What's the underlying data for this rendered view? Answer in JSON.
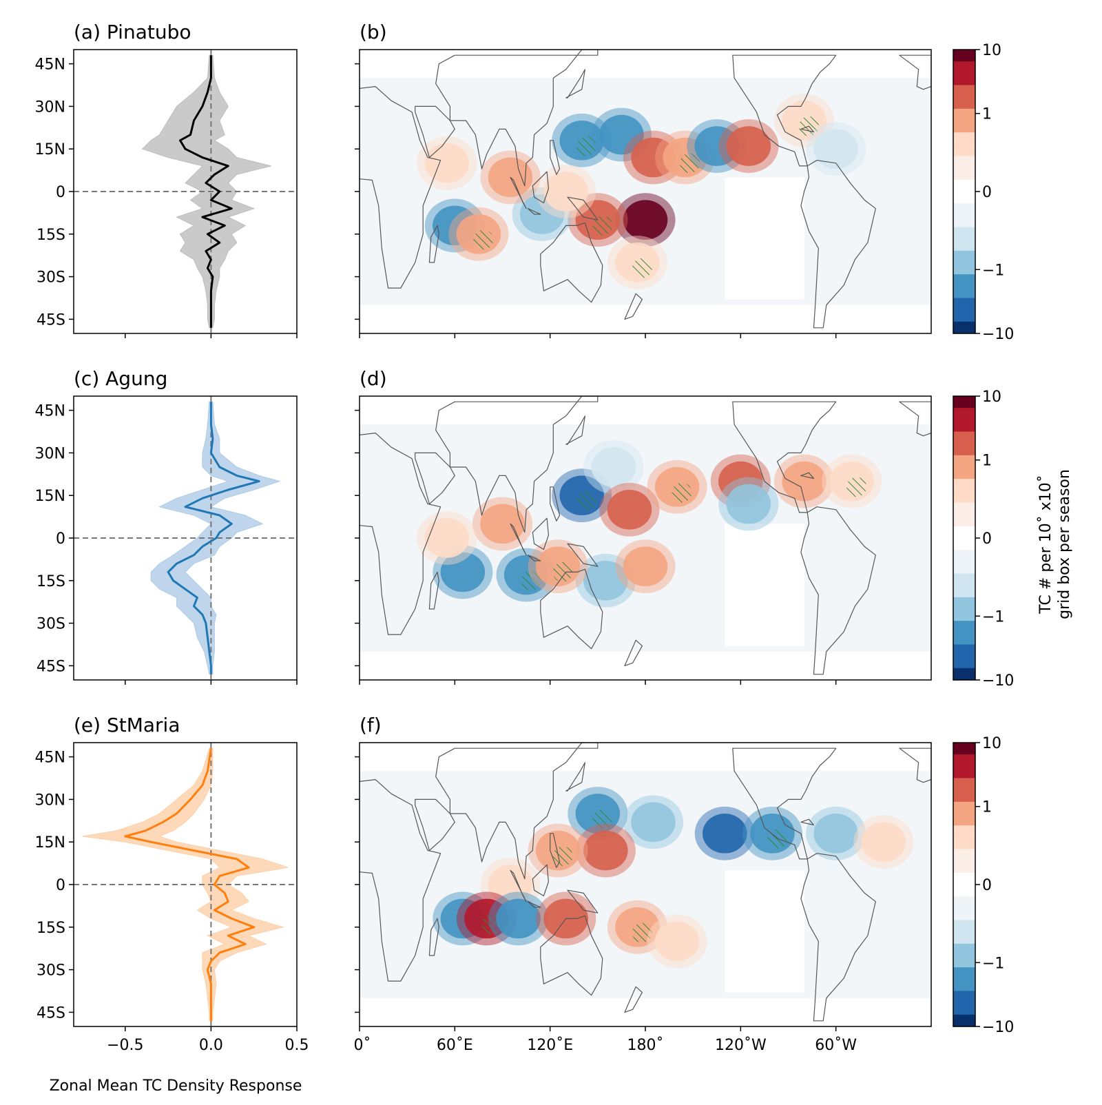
{
  "figure": {
    "x_axis_label": "Zonal Mean TC Density Response",
    "colorbar_label_line1": "TC # per 10˚ x10˚",
    "colorbar_label_line2": "grid box per season"
  },
  "colors": {
    "pinatubo": "#000000",
    "agung": "#1f77b4",
    "stmaria": "#ff7f0e",
    "pinatubo_band": "#bdbdbd",
    "agung_band": "#aecbe6",
    "stmaria_band": "#fdd0a8",
    "coast": "#555555",
    "hatch": "#2e8b2e"
  },
  "rows": [
    {
      "line_title": "(a) Pinatubo",
      "map_title": "(b)",
      "series_key": "pinatubo"
    },
    {
      "line_title": "(c) Agung",
      "map_title": "(d)",
      "series_key": "agung"
    },
    {
      "line_title": "(e) StMaria",
      "map_title": "(f)",
      "series_key": "stmaria"
    }
  ],
  "line_axis": {
    "y_ticks": [
      "45N",
      "30N",
      "15N",
      "0",
      "15S",
      "30S",
      "45S"
    ],
    "y_tick_values": [
      45,
      30,
      15,
      0,
      -15,
      -30,
      -45
    ],
    "ylim": [
      -50,
      50
    ],
    "x_ticks": [
      "−0.5",
      "0.0",
      "0.5"
    ],
    "x_tick_values": [
      -0.5,
      0.0,
      0.5
    ],
    "xlim": [
      -0.8,
      0.5
    ]
  },
  "map_axis": {
    "x_ticks": [
      "0˚",
      "60˚E",
      "120˚E",
      "180˚",
      "120˚W",
      "60˚W"
    ],
    "x_tick_values": [
      0,
      60,
      120,
      180,
      240,
      300
    ]
  },
  "colorbar": {
    "tick_labels": [
      "10",
      "1",
      "0",
      "−1",
      "−10"
    ]
  },
  "chart_data": [
    {
      "type": "line",
      "name": "pinatubo",
      "lat": [
        48,
        40,
        35,
        30,
        25,
        20,
        18,
        15,
        12,
        9,
        6,
        3,
        0,
        -3,
        -6,
        -9,
        -12,
        -15,
        -18,
        -21,
        -24,
        -27,
        -30,
        -35,
        -40,
        -45,
        -48
      ],
      "values": [
        0.0,
        0.0,
        -0.02,
        -0.05,
        -0.1,
        -0.12,
        -0.18,
        -0.15,
        -0.05,
        0.1,
        0.02,
        -0.03,
        0.05,
        0.0,
        0.12,
        -0.05,
        0.08,
        -0.02,
        0.05,
        -0.03,
        0.0,
        -0.02,
        0.01,
        0.0,
        0.0,
        0.0,
        0.0
      ],
      "band_low": [
        -0.01,
        -0.02,
        -0.1,
        -0.2,
        -0.25,
        -0.3,
        -0.35,
        -0.4,
        -0.25,
        -0.05,
        -0.1,
        -0.15,
        -0.05,
        -0.12,
        -0.05,
        -0.2,
        -0.1,
        -0.18,
        -0.15,
        -0.18,
        -0.1,
        -0.08,
        -0.05,
        -0.03,
        -0.02,
        -0.02,
        -0.01
      ],
      "band_high": [
        0.01,
        0.02,
        0.05,
        0.1,
        0.05,
        0.08,
        0.02,
        0.1,
        0.15,
        0.35,
        0.15,
        0.1,
        0.15,
        0.12,
        0.25,
        0.1,
        0.2,
        0.12,
        0.15,
        0.1,
        0.08,
        0.05,
        0.05,
        0.03,
        0.02,
        0.02,
        0.01
      ]
    },
    {
      "type": "line",
      "name": "agung",
      "lat": [
        48,
        40,
        35,
        30,
        25,
        22,
        20,
        17,
        14,
        11,
        8,
        5,
        2,
        0,
        -3,
        -6,
        -9,
        -12,
        -15,
        -18,
        -21,
        -24,
        -27,
        -30,
        -35,
        -40,
        -45,
        -48
      ],
      "values": [
        0.0,
        0.0,
        0.01,
        0.0,
        0.05,
        0.15,
        0.28,
        0.1,
        -0.05,
        -0.15,
        0.05,
        0.12,
        0.05,
        0.03,
        -0.05,
        -0.1,
        -0.2,
        -0.25,
        -0.22,
        -0.15,
        -0.08,
        -0.1,
        -0.05,
        -0.03,
        -0.02,
        -0.01,
        0.0,
        0.0
      ],
      "band_low": [
        -0.01,
        -0.02,
        -0.03,
        -0.05,
        -0.05,
        0.0,
        0.1,
        -0.05,
        -0.2,
        -0.3,
        -0.1,
        0.0,
        -0.05,
        -0.08,
        -0.15,
        -0.22,
        -0.3,
        -0.35,
        -0.35,
        -0.3,
        -0.2,
        -0.2,
        -0.15,
        -0.1,
        -0.08,
        -0.04,
        -0.02,
        -0.01
      ],
      "band_high": [
        0.01,
        0.02,
        0.05,
        0.05,
        0.15,
        0.28,
        0.4,
        0.25,
        0.08,
        0.0,
        0.2,
        0.3,
        0.15,
        0.12,
        0.05,
        0.02,
        -0.1,
        -0.15,
        -0.1,
        -0.05,
        0.0,
        0.0,
        0.03,
        0.02,
        0.02,
        0.02,
        0.01,
        0.01
      ]
    },
    {
      "type": "line",
      "name": "stmaria",
      "lat": [
        48,
        40,
        35,
        30,
        25,
        22,
        19,
        17,
        15,
        12,
        9,
        6,
        3,
        0,
        -3,
        -6,
        -9,
        -12,
        -15,
        -18,
        -21,
        -24,
        -27,
        -30,
        -35,
        -40,
        -45,
        -48
      ],
      "values": [
        0.0,
        -0.02,
        -0.05,
        -0.12,
        -0.2,
        -0.28,
        -0.38,
        -0.5,
        -0.35,
        -0.1,
        0.15,
        0.22,
        0.05,
        0.02,
        0.08,
        0.1,
        0.02,
        0.12,
        0.25,
        0.1,
        0.2,
        0.05,
        0.0,
        -0.02,
        0.0,
        0.0,
        0.0,
        0.0
      ],
      "band_low": [
        -0.01,
        -0.05,
        -0.1,
        -0.2,
        -0.3,
        -0.4,
        -0.55,
        -0.75,
        -0.5,
        -0.25,
        0.0,
        0.05,
        -0.05,
        -0.05,
        -0.02,
        0.0,
        -0.08,
        0.0,
        0.12,
        -0.02,
        0.08,
        -0.05,
        -0.05,
        -0.05,
        -0.03,
        -0.02,
        -0.01,
        -0.01
      ],
      "band_high": [
        0.01,
        0.01,
        0.0,
        -0.04,
        -0.1,
        -0.15,
        -0.22,
        -0.3,
        -0.2,
        0.05,
        0.3,
        0.45,
        0.15,
        0.1,
        0.18,
        0.22,
        0.12,
        0.25,
        0.42,
        0.22,
        0.32,
        0.15,
        0.05,
        0.02,
        0.03,
        0.02,
        0.01,
        0.01
      ]
    },
    {
      "type": "heatmap",
      "name": "(b)",
      "lon_range": [
        0,
        360
      ],
      "lat_range": [
        -50,
        50
      ],
      "color_scale": "RdBu_r",
      "clim": [
        -10,
        10
      ],
      "blobs": [
        {
          "lon": 140,
          "lat": 18,
          "v": -1.2
        },
        {
          "lon": 165,
          "lat": 20,
          "v": -1.0
        },
        {
          "lon": 185,
          "lat": 12,
          "v": 1.2
        },
        {
          "lon": 205,
          "lat": 12,
          "v": 0.8
        },
        {
          "lon": 225,
          "lat": 16,
          "v": -1.0
        },
        {
          "lon": 245,
          "lat": 16,
          "v": 1.0
        },
        {
          "lon": 280,
          "lat": 25,
          "v": 0.6
        },
        {
          "lon": 300,
          "lat": 15,
          "v": -0.6
        },
        {
          "lon": 180,
          "lat": -10,
          "v": 1.5
        },
        {
          "lon": 150,
          "lat": -10,
          "v": 1.0
        },
        {
          "lon": 115,
          "lat": -8,
          "v": -0.8
        },
        {
          "lon": 60,
          "lat": -12,
          "v": -1.0
        },
        {
          "lon": 75,
          "lat": -15,
          "v": 0.8
        },
        {
          "lon": 95,
          "lat": 5,
          "v": 0.8
        },
        {
          "lon": 130,
          "lat": 0,
          "v": 0.6
        },
        {
          "lon": 175,
          "lat": -25,
          "v": 0.6
        },
        {
          "lon": 55,
          "lat": 10,
          "v": 0.6
        }
      ]
    },
    {
      "type": "heatmap",
      "name": "(d)",
      "lon_range": [
        0,
        360
      ],
      "lat_range": [
        -50,
        50
      ],
      "color_scale": "RdBu_r",
      "clim": [
        -10,
        10
      ],
      "blobs": [
        {
          "lon": 140,
          "lat": 15,
          "v": -1.4
        },
        {
          "lon": 160,
          "lat": 25,
          "v": -0.6
        },
        {
          "lon": 170,
          "lat": 10,
          "v": 1.0
        },
        {
          "lon": 200,
          "lat": 18,
          "v": 0.8
        },
        {
          "lon": 240,
          "lat": 20,
          "v": 1.2
        },
        {
          "lon": 280,
          "lat": 20,
          "v": 0.8
        },
        {
          "lon": 310,
          "lat": 20,
          "v": 0.6
        },
        {
          "lon": 245,
          "lat": 12,
          "v": -0.8
        },
        {
          "lon": 65,
          "lat": -12,
          "v": -1.2
        },
        {
          "lon": 105,
          "lat": -13,
          "v": -1.2
        },
        {
          "lon": 155,
          "lat": -15,
          "v": -0.9
        },
        {
          "lon": 180,
          "lat": -10,
          "v": 0.8
        },
        {
          "lon": 125,
          "lat": -10,
          "v": 0.7
        },
        {
          "lon": 90,
          "lat": 5,
          "v": 0.8
        },
        {
          "lon": 55,
          "lat": 0,
          "v": 0.6
        }
      ]
    },
    {
      "type": "heatmap",
      "name": "(f)",
      "lon_range": [
        0,
        360
      ],
      "lat_range": [
        -50,
        50
      ],
      "color_scale": "RdBu_r",
      "clim": [
        -10,
        10
      ],
      "blobs": [
        {
          "lon": 150,
          "lat": 25,
          "v": -1.0
        },
        {
          "lon": 185,
          "lat": 22,
          "v": -0.9
        },
        {
          "lon": 230,
          "lat": 18,
          "v": -1.4
        },
        {
          "lon": 260,
          "lat": 18,
          "v": -1.0
        },
        {
          "lon": 300,
          "lat": 18,
          "v": -0.9
        },
        {
          "lon": 155,
          "lat": 12,
          "v": 1.2
        },
        {
          "lon": 125,
          "lat": 12,
          "v": 0.8
        },
        {
          "lon": 95,
          "lat": 0,
          "v": 0.6
        },
        {
          "lon": 65,
          "lat": -12,
          "v": -1.0
        },
        {
          "lon": 80,
          "lat": -12,
          "v": 1.4
        },
        {
          "lon": 100,
          "lat": -12,
          "v": -1.2
        },
        {
          "lon": 130,
          "lat": -12,
          "v": 1.0
        },
        {
          "lon": 175,
          "lat": -15,
          "v": 0.7
        },
        {
          "lon": 200,
          "lat": -20,
          "v": 0.5
        },
        {
          "lon": 330,
          "lat": 15,
          "v": 0.6
        }
      ]
    }
  ]
}
